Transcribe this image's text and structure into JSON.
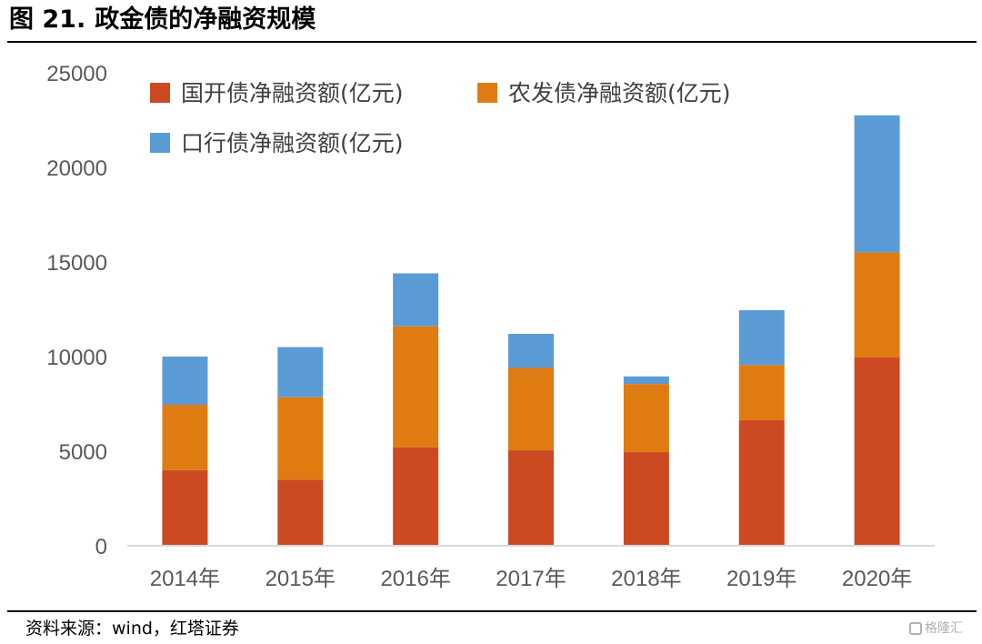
{
  "title": {
    "figure_label": "图 21.",
    "text": "政金债的净融资规模"
  },
  "source": {
    "text": "资料来源：wind，红塔证券"
  },
  "watermark": {
    "text": "格隆汇"
  },
  "colors": {
    "series1": "#cc4a21",
    "series2": "#e07b12",
    "series3": "#5b9bd5",
    "axis": "#d9d9d9",
    "ticks": "#595959"
  },
  "chart_data": {
    "type": "bar",
    "stacked": true,
    "categories": [
      "2014年",
      "2015年",
      "2016年",
      "2017年",
      "2018年",
      "2019年",
      "2020年"
    ],
    "series": [
      {
        "name": "国开债净融资额(亿元)",
        "values": [
          4000,
          3500,
          5200,
          5050,
          4950,
          6650,
          9950
        ]
      },
      {
        "name": "农发债净融资额(亿元)",
        "values": [
          3450,
          4350,
          6400,
          4350,
          3600,
          2900,
          5550
        ]
      },
      {
        "name": "口行债净融资额(亿元)",
        "values": [
          2550,
          2650,
          2800,
          1800,
          400,
          2900,
          7250
        ]
      }
    ],
    "ylim": [
      0,
      25000
    ],
    "yticks": [
      "0",
      "5000",
      "10000",
      "15000",
      "20000",
      "25000"
    ],
    "xlabel": "",
    "ylabel": "",
    "grid": false,
    "legend_position": "top-left"
  }
}
